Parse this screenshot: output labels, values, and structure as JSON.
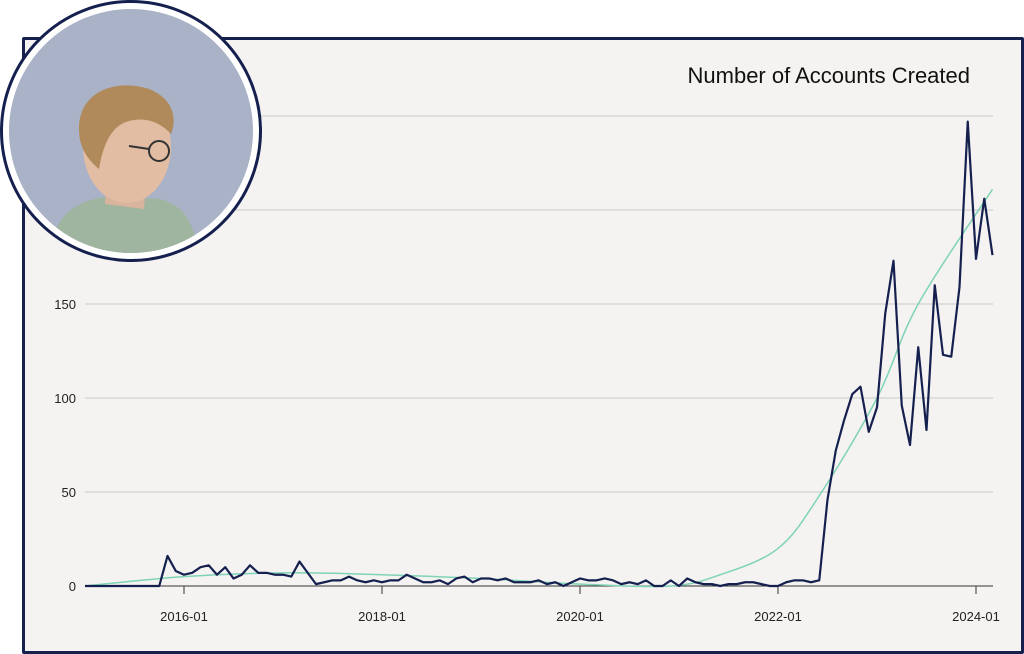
{
  "chart_data": {
    "type": "line",
    "title": "Number of Accounts Created",
    "xlabel": "",
    "ylabel": "",
    "x_start": "2015-01",
    "x_end": "2024-03",
    "x_interval": "monthly",
    "xticks": [
      "2016-01",
      "2018-01",
      "2020-01",
      "2022-01",
      "2024-01"
    ],
    "yticks": [
      0,
      50,
      100,
      150
    ],
    "ylim": [
      0,
      250
    ],
    "grid": "horizontal",
    "colors": {
      "series": "#15204f",
      "trend": "#7fd3b6",
      "frame": "#15204f"
    },
    "series": [
      {
        "values": [
          0,
          0,
          0,
          0,
          0,
          0,
          0,
          0,
          0,
          0,
          16,
          8,
          6,
          7,
          10,
          11,
          6,
          10,
          4,
          6,
          11,
          7,
          7,
          6,
          6,
          5,
          13,
          7,
          1,
          2,
          3,
          3,
          5,
          3,
          2,
          3,
          2,
          3,
          3,
          6,
          4,
          2,
          2,
          3,
          1,
          4,
          5,
          2,
          4,
          4,
          3,
          4,
          2,
          2,
          2,
          3,
          1,
          2,
          0,
          2,
          4,
          3,
          3,
          4,
          3,
          1,
          2,
          1,
          3,
          0,
          0,
          3,
          0,
          4,
          2,
          1,
          1,
          0,
          1,
          1,
          2,
          2,
          1,
          0,
          0,
          2,
          3,
          3,
          2,
          3,
          46,
          72,
          88,
          102,
          106,
          82,
          95,
          145,
          173,
          96,
          75,
          127,
          83,
          160,
          123,
          122,
          159,
          247,
          174,
          206,
          176
        ]
      }
    ],
    "trend": {
      "dates": [
        "2015-01",
        "2016-01",
        "2017-01",
        "2018-01",
        "2019-01",
        "2020-01",
        "2020-12",
        "2021-06",
        "2022-01",
        "2022-06",
        "2023-01",
        "2023-06",
        "2024-03"
      ],
      "values": [
        0,
        5,
        7,
        6,
        4,
        1,
        0,
        6,
        20,
        48,
        100,
        150,
        211
      ]
    }
  },
  "avatar": {
    "label": "presenter-photo"
  }
}
